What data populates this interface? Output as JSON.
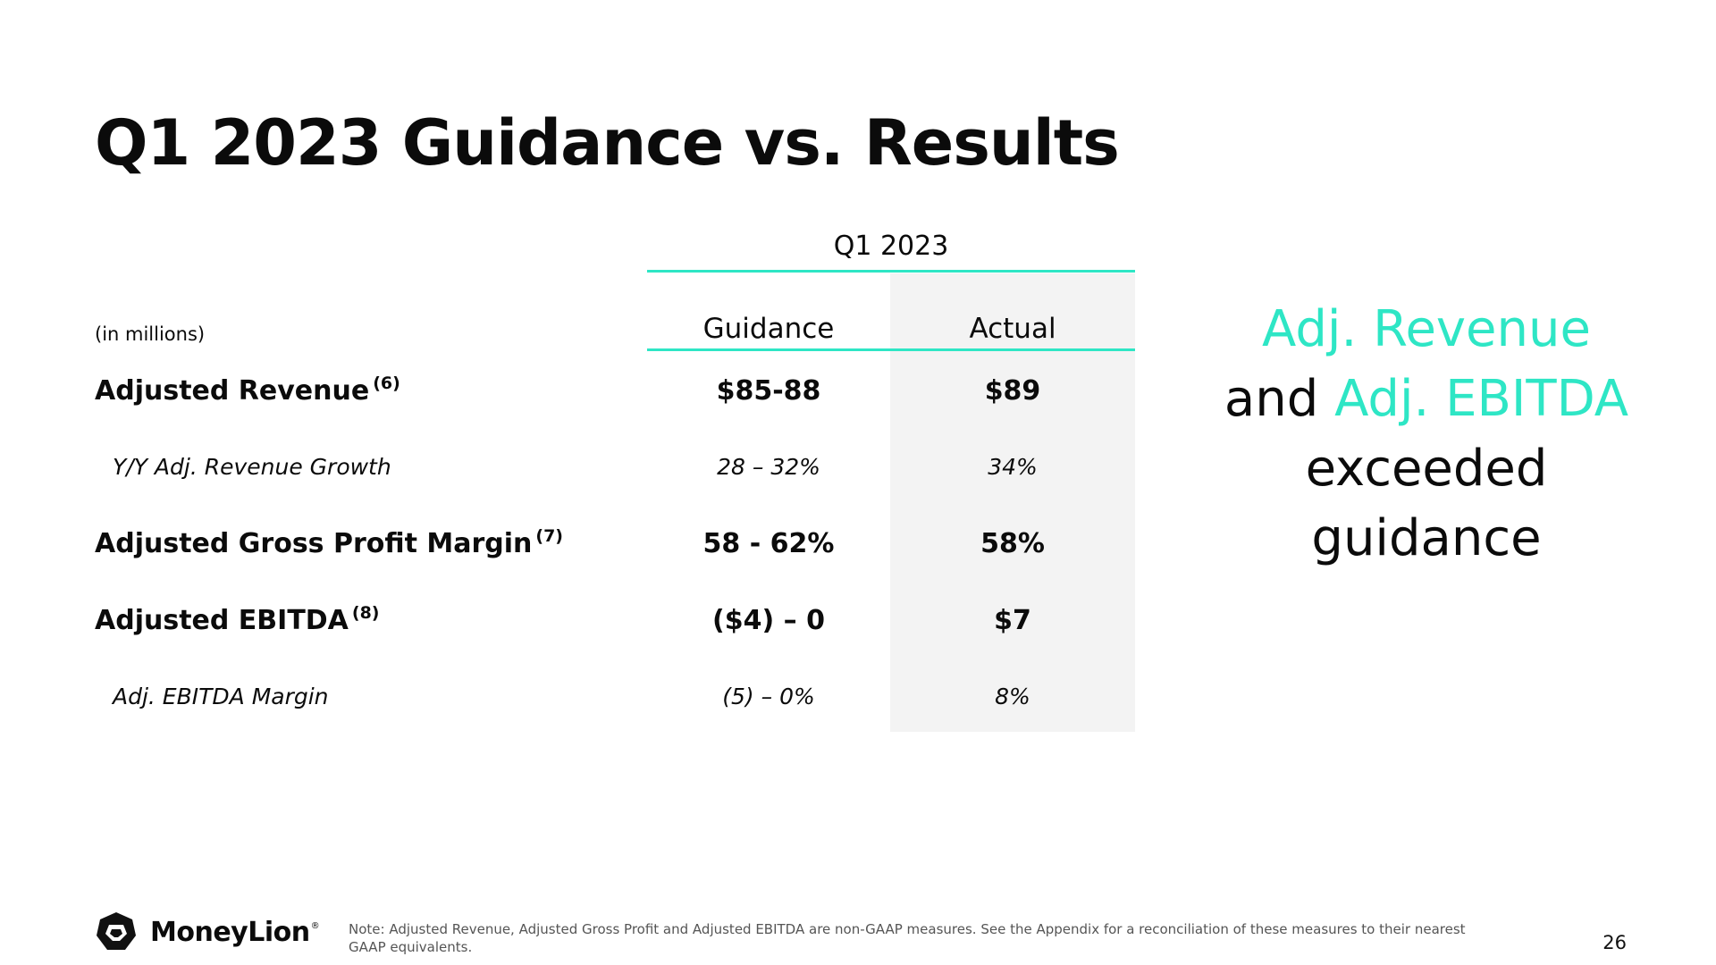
{
  "slide": {
    "title": "Q1 2023 Guidance vs. Results",
    "page_number": "26"
  },
  "table": {
    "period": "Q1 2023",
    "units": "(in millions)",
    "columns": {
      "guidance": "Guidance",
      "actual": "Actual"
    },
    "rows": [
      {
        "label": "Adjusted Revenue",
        "footnote": "(6)",
        "guidance": "$85-88",
        "actual": "$89"
      },
      {
        "label": "Y/Y Adj. Revenue Growth",
        "guidance": "28 – 32%",
        "actual": "34%"
      },
      {
        "label": "Adjusted Gross Profit Margin",
        "footnote": "(7)",
        "guidance": "58 - 62%",
        "actual": "58%"
      },
      {
        "label": "Adjusted EBITDA",
        "footnote": "(8)",
        "guidance": "($4) – 0",
        "actual": "$7"
      },
      {
        "label": "Adj. EBITDA Margin",
        "guidance": "(5) – 0%",
        "actual": "8%"
      }
    ]
  },
  "callout": {
    "part1": "Adj. Revenue",
    "part2": "and ",
    "part3": "Adj. EBITDA",
    "part4": "exceeded",
    "part5": "guidance",
    "accent_color": "#2ee6c5"
  },
  "footer": {
    "logo_text": "MoneyLion",
    "logo_reg": "®",
    "logo_icon": "lion-icon",
    "note": "Note: Adjusted Revenue, Adjusted Gross Profit and Adjusted EBITDA are non-GAAP measures. See the Appendix for a reconciliation of these measures to their nearest GAAP equivalents."
  }
}
